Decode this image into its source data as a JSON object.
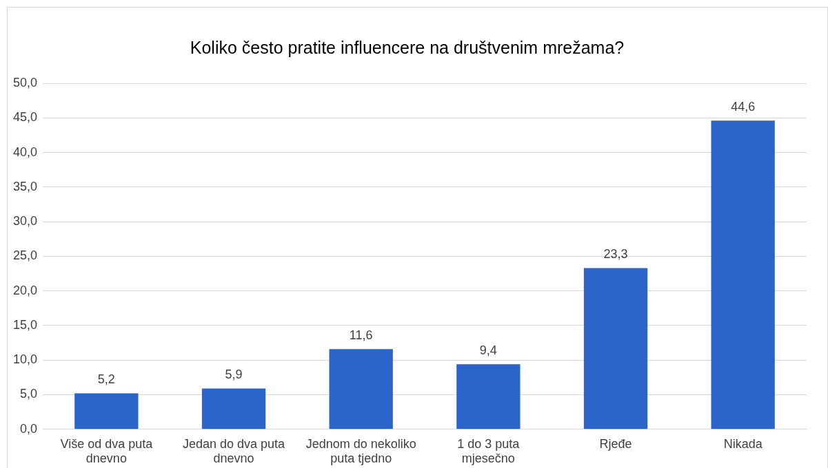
{
  "chart_data": {
    "type": "bar",
    "title": "Koliko često pratite influencere na društvenim mrežama?",
    "categories": [
      "Više od dva puta dnevno",
      "Jedan do dva puta dnevno",
      "Jednom do nekoliko puta tjedno",
      "1 do 3 puta mjesečno",
      "Rjeđe",
      "Nikada"
    ],
    "values": [
      5.2,
      5.9,
      11.6,
      9.4,
      23.3,
      44.6
    ],
    "value_labels": [
      "5,2",
      "5,9",
      "11,6",
      "9,4",
      "23,3",
      "44,6"
    ],
    "color": "#2b65c9",
    "ylim": [
      0,
      50
    ],
    "yticks": [
      {
        "value": 0,
        "label": "0,0"
      },
      {
        "value": 5,
        "label": "5,0"
      },
      {
        "value": 10,
        "label": "10,0"
      },
      {
        "value": 15,
        "label": "15,0"
      },
      {
        "value": 20,
        "label": "20,0"
      },
      {
        "value": 25,
        "label": "25,0"
      },
      {
        "value": 30,
        "label": "30,0"
      },
      {
        "value": 35,
        "label": "35,0"
      },
      {
        "value": 40,
        "label": "40,0"
      },
      {
        "value": 45,
        "label": "45,0"
      },
      {
        "value": 50,
        "label": "50,0"
      }
    ],
    "grid": "y"
  }
}
